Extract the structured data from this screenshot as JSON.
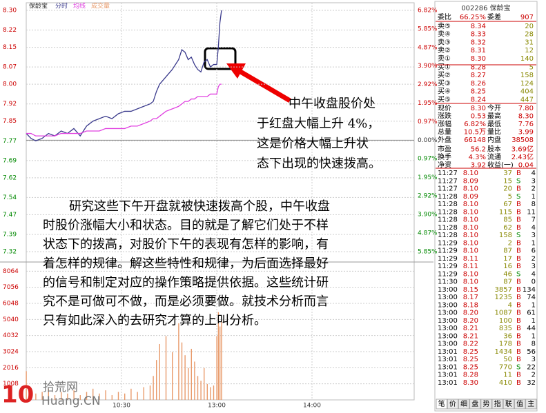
{
  "chart_data": [
    {
      "type": "line",
      "title": "保龄宝",
      "x": [
        0,
        3,
        6,
        10,
        14,
        18,
        22,
        26,
        30,
        34,
        38,
        42,
        46,
        50,
        54,
        58,
        62,
        66,
        70,
        74,
        78,
        80,
        82,
        84,
        88,
        92,
        96,
        98,
        100,
        102,
        104,
        106,
        108,
        110,
        112,
        114,
        116,
        118,
        120,
        121,
        122,
        123
      ],
      "series": [
        {
          "name": "分时",
          "color": "#3a3a8c",
          "values": [
            7.8,
            7.78,
            7.77,
            7.78,
            7.8,
            7.79,
            7.81,
            7.8,
            7.82,
            7.79,
            7.83,
            7.85,
            7.86,
            7.87,
            7.86,
            7.88,
            7.89,
            7.89,
            7.9,
            7.91,
            7.92,
            7.93,
            7.97,
            8.0,
            8.03,
            8.06,
            8.1,
            8.14,
            8.13,
            8.1,
            8.11,
            8.08,
            8.06,
            8.05,
            8.09,
            8.1,
            8.07,
            8.08,
            8.08,
            8.15,
            8.25,
            8.3
          ]
        },
        {
          "name": "均线",
          "color": "#e040e0",
          "values": [
            7.8,
            7.8,
            7.79,
            7.79,
            7.79,
            7.79,
            7.8,
            7.8,
            7.8,
            7.8,
            7.81,
            7.81,
            7.81,
            7.82,
            7.82,
            7.82,
            7.82,
            7.83,
            7.83,
            7.84,
            7.85,
            7.86,
            7.86,
            7.87,
            7.89,
            7.9,
            7.91,
            7.92,
            7.93,
            7.93,
            7.94,
            7.94,
            7.95,
            7.95,
            7.95,
            7.95,
            7.96,
            7.96,
            7.96,
            7.99,
            8.0,
            8.0
          ]
        }
      ],
      "ylim": [
        7.32,
        8.3
      ],
      "yticks": [
        {
          "value": 8.3,
          "label": "8.30"
        },
        {
          "value": 8.22,
          "label": "8.22"
        },
        8.15,
        8.07,
        {
          "value": 8.0,
          "label": "8.00"
        },
        7.92,
        7.85,
        7.77,
        7.69,
        7.62,
        7.54,
        7.47,
        7.39,
        7.32
      ],
      "y2lim": [
        -5.85,
        6.82
      ],
      "y2ticks": [
        {
          "value": 6.82,
          "label": "6.82%"
        },
        {
          "value": 5.85,
          "label": "5.85%"
        },
        {
          "value": 4.87,
          "label": "4.87%"
        },
        {
          "value": 3.9,
          "label": "3.90%"
        },
        {
          "value": 2.92,
          "label": "2.92%"
        },
        {
          "value": 1.95,
          "label": "1.95%"
        },
        {
          "value": 0.97,
          "label": "0.97%"
        },
        {
          "value": 0,
          "label": "0.00%"
        },
        {
          "value": -0.97,
          "label": "0.97%"
        },
        {
          "value": -1.95,
          "label": "1.95%"
        },
        {
          "value": -2.92,
          "label": "2.92%"
        },
        {
          "value": -3.9,
          "label": "3.90%"
        },
        {
          "value": -4.87,
          "label": "4.87%"
        },
        {
          "value": -5.85,
          "label": "5.85%"
        }
      ],
      "xlim": [
        0,
        240
      ],
      "xticks": [
        {
          "value": 60,
          "label": "10:30"
        },
        {
          "value": 120,
          "label": "13:00"
        },
        {
          "value": 180,
          "label": "14:00"
        }
      ],
      "grid": true
    },
    {
      "type": "bar",
      "x": [
        0,
        3,
        6,
        10,
        14,
        18,
        22,
        26,
        30,
        34,
        38,
        42,
        46,
        50,
        54,
        58,
        62,
        66,
        70,
        74,
        78,
        80,
        82,
        84,
        88,
        92,
        96,
        98,
        100,
        102,
        104,
        106,
        108,
        110,
        112,
        114,
        116,
        118,
        120,
        121,
        122,
        123
      ],
      "series": [
        {
          "name": "成交量",
          "color": "#e89a6a",
          "values": [
            1800,
            600,
            400,
            500,
            700,
            300,
            500,
            400,
            600,
            300,
            500,
            700,
            400,
            600,
            300,
            500,
            400,
            700,
            500,
            800,
            900,
            1500,
            2500,
            3500,
            4000,
            3000,
            4800,
            3600,
            2800,
            2000,
            3200,
            2400,
            1500,
            1200,
            2000,
            1000,
            800,
            900,
            4000,
            5500,
            4600,
            5000
          ]
        }
      ],
      "ylim": [
        0,
        9072
      ],
      "yticks": [
        1008,
        2016,
        3024,
        4032,
        5040,
        6048,
        7056,
        8064
      ],
      "xlim": [
        0,
        240
      ],
      "grid": true
    }
  ],
  "annotation": [
    "中午收盘股价处",
    "于红盘大幅上升 4%，",
    "这是价格大幅上升状",
    "态下出现的快速拨高。"
  ],
  "paragraph": [
    "研究这些下午开盘就被快速拨高个股，中午收盘",
    "时股价涨幅大小和状态。目的就是了解它们处于不样",
    "状态下的拨高，对股价下午的表现有怎样的影响，有",
    "着怎样的规律。解这些特性和规律，为后面选择最好",
    "的信号和制定对应的操作策略提供依据。这些统计研",
    "究不是可做可不做，而是必须要做。就技术分析而言",
    "只有如此深入的去研究才算的上叫分析。"
  ],
  "watermark": {
    "number": "10",
    "name": "拾荒网",
    "site": "Huang.CN"
  },
  "quote": {
    "header": "002286 保龄宝",
    "ratio": [
      "委比",
      "66.25%",
      "委差",
      "907"
    ],
    "book": [
      [
        "卖⑤",
        "8.34",
        "20"
      ],
      [
        "卖④",
        "8.33",
        "28"
      ],
      [
        "卖③",
        "8.32",
        "31"
      ],
      [
        "卖②",
        "8.31",
        "12"
      ],
      [
        "卖①",
        "8.30",
        "140"
      ],
      [
        "买①",
        "8.28",
        "5"
      ],
      [
        "买②",
        "8.27",
        "158"
      ],
      [
        "买③",
        "8.26",
        "124"
      ],
      [
        "买④",
        "8.25",
        "404"
      ],
      [
        "买⑤",
        "8.24",
        "447"
      ]
    ],
    "stats": [
      [
        "现价",
        "8.30",
        "今开",
        "7.80"
      ],
      [
        "涨跌",
        "0.53",
        "最高",
        "8.30"
      ],
      [
        "涨幅",
        "6.82%",
        "最低",
        "7.76"
      ],
      [
        "总量",
        "10.5万",
        "量比",
        "3.99"
      ],
      [
        "外盘",
        "66148",
        "内盘",
        "38508"
      ],
      [
        "市盈",
        "56.2",
        "股本",
        "3.69亿"
      ],
      [
        "换手",
        "4.3%",
        "流通",
        "2.43亿"
      ],
      [
        "净资",
        "3.92",
        "收益(一)",
        "0.04"
      ]
    ],
    "trades": [
      [
        "11:27",
        "8.10",
        "37",
        "B",
        "4"
      ],
      [
        "11:27",
        "8.09",
        "15",
        "S",
        "3"
      ],
      [
        "11:27",
        "8.10",
        "20",
        "B",
        "2"
      ],
      [
        "11:28",
        "8.09",
        "5",
        "S",
        "1"
      ],
      [
        "11:28",
        "8.10",
        "67",
        "B",
        "8"
      ],
      [
        "11:28",
        "8.10",
        "115",
        "B",
        "11"
      ],
      [
        "11:28",
        "8.10",
        "85",
        "B",
        "7"
      ],
      [
        "11:28",
        "8.10",
        "62",
        "B",
        "4"
      ],
      [
        "11:28",
        "8.10",
        "158",
        "S",
        "3"
      ],
      [
        "11:29",
        "8.10",
        "2",
        "B",
        "1"
      ],
      [
        "11:29",
        "8.10",
        "87",
        "B",
        "6"
      ],
      [
        "11:29",
        "8.11",
        "17",
        "B",
        "2"
      ],
      [
        "11:29",
        "8.11",
        "16",
        "B",
        "3"
      ],
      [
        "11:29",
        "8.10",
        "46",
        "S",
        "4"
      ],
      [
        "11:30",
        "8.10",
        "87",
        "B",
        "0"
      ],
      [
        "13:00",
        "8.15",
        "3857",
        "B",
        "134"
      ],
      [
        "13:00",
        "8.17",
        "1235",
        "B",
        "74"
      ],
      [
        "13:00",
        "8.18",
        "4",
        "B",
        "1"
      ],
      [
        "13:00",
        "8.20",
        "1087",
        "B",
        "61"
      ],
      [
        "13:00",
        "8.20",
        "100",
        "B",
        "1"
      ],
      [
        "13:00",
        "8.21",
        "835",
        "B",
        "44"
      ],
      [
        "13:00",
        "8.21",
        "36",
        "B",
        "1"
      ],
      [
        "13:00",
        "8.22",
        "178",
        "B",
        "8"
      ],
      [
        "13:01",
        "8.25",
        "1434",
        "B",
        "56"
      ],
      [
        "13:01",
        "8.25",
        "50",
        "B",
        "3"
      ],
      [
        "13:01",
        "8.25",
        "770",
        "S",
        "22"
      ],
      [
        "13:01",
        "8.28",
        "11",
        "B",
        "2"
      ],
      [
        "13:01",
        "8.30",
        "410",
        "B",
        "32"
      ]
    ],
    "tabs": [
      "笔",
      "价",
      "细",
      "盘",
      "势",
      "指",
      "联",
      "值",
      "主"
    ]
  }
}
